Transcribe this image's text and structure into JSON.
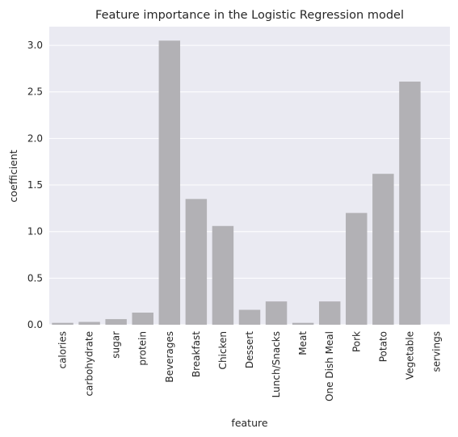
{
  "chart_data": {
    "type": "bar",
    "title": "Feature importance in the Logistic Regression model",
    "xlabel": "feature",
    "ylabel": "coefficient",
    "categories": [
      "calories",
      "carbohydrate",
      "sugar",
      "protein",
      "Beverages",
      "Breakfast",
      "Chicken",
      "Dessert",
      "Lunch/Snacks",
      "Meat",
      "One Dish Meal",
      "Pork",
      "Potato",
      "Vegetable",
      "servings"
    ],
    "values": [
      0.02,
      0.03,
      0.06,
      0.13,
      3.05,
      1.35,
      1.06,
      0.16,
      0.25,
      0.02,
      0.25,
      1.2,
      1.62,
      2.61,
      0.0
    ],
    "ylim": [
      0,
      3.2
    ],
    "yticks": [
      0.0,
      0.5,
      1.0,
      1.5,
      2.0,
      2.5,
      3.0
    ],
    "ytick_labels": [
      "0.0",
      "0.5",
      "1.0",
      "1.5",
      "2.0",
      "2.5",
      "3.0"
    ],
    "grid": true,
    "bar_color": "#b2b1b5",
    "background_color": "#eaeaf2",
    "grid_color": "#ffffff"
  }
}
